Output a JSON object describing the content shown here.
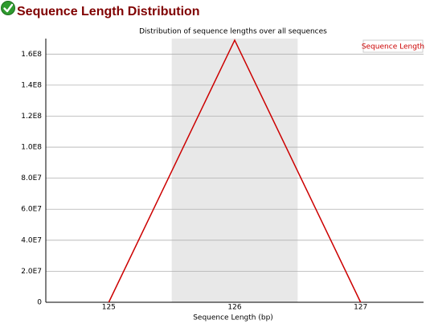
{
  "chart_data": {
    "type": "line",
    "title": "Sequence Length Distribution",
    "subtitle": "Distribution of sequence lengths over all sequences",
    "x_label": "Sequence Length (bp)",
    "categories": [
      "125",
      "126",
      "127"
    ],
    "series": [
      {
        "name": "Sequence Length",
        "color": "#cc0000",
        "values": [
          0,
          169000000,
          0
        ]
      }
    ],
    "ylim": [
      0,
      170000000
    ],
    "yticks": [
      0,
      {
        "value": 20000000,
        "label": "2.0E7"
      },
      {
        "value": 40000000,
        "label": "4.0E7"
      },
      {
        "value": 60000000,
        "label": "6.0E7"
      },
      {
        "value": 80000000,
        "label": "8.0E7"
      },
      {
        "value": 100000000,
        "label": "1.0E8"
      },
      {
        "value": 120000000,
        "label": "1.2E8"
      },
      {
        "value": 140000000,
        "label": "1.4E8"
      },
      {
        "value": 160000000,
        "label": "1.6E8"
      }
    ],
    "grid": true,
    "legend": "top-right"
  }
}
